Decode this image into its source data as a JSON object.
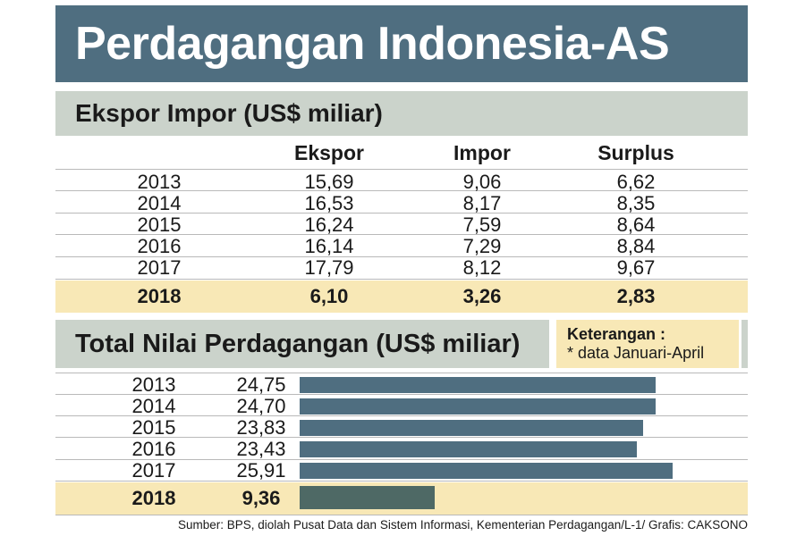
{
  "title": "Perdagangan Indonesia-AS",
  "colors": {
    "header_bg": "#4f6e80",
    "section_bg": "#cbd3cb",
    "highlight_bg": "#f8e8b6",
    "bar": "#4f6e80",
    "bar_highlight": "#4e6965"
  },
  "note": {
    "title": "Keterangan :",
    "text": "* data Januari-April"
  },
  "source": "Sumber: BPS, diolah Pusat Data dan Sistem Informasi, Kementerian Perdagangan/L-1/ Grafis: CAKSONO",
  "chart_data": [
    {
      "type": "table",
      "title": "Ekspor Impor (US$ miliar)",
      "columns": [
        "Ekspor",
        "Impor",
        "Surplus"
      ],
      "rows": [
        {
          "year": "2013",
          "values": [
            "15,69",
            "9,06",
            "6,62"
          ]
        },
        {
          "year": "2014",
          "values": [
            "16,53",
            "8,17",
            "8,35"
          ]
        },
        {
          "year": "2015",
          "values": [
            "16,24",
            "7,59",
            "8,64"
          ]
        },
        {
          "year": "2016",
          "values": [
            "16,14",
            "7,29",
            "8,84"
          ]
        },
        {
          "year": "2017",
          "values": [
            "17,79",
            "8,12",
            "9,67"
          ]
        },
        {
          "year": "2018",
          "values": [
            "6,10",
            "3,26",
            "2,83"
          ],
          "highlight": true
        }
      ]
    },
    {
      "type": "bar",
      "orientation": "horizontal",
      "title": "Total Nilai Perdagangan (US$ miliar)",
      "categories": [
        "2013",
        "2014",
        "2015",
        "2016",
        "2017",
        "2018"
      ],
      "labels": [
        "24,75",
        "24,70",
        "23,83",
        "23,43",
        "25,91",
        "9,36"
      ],
      "values": [
        24.75,
        24.7,
        23.83,
        23.43,
        25.91,
        9.36
      ],
      "highlight_index": 5
    }
  ]
}
